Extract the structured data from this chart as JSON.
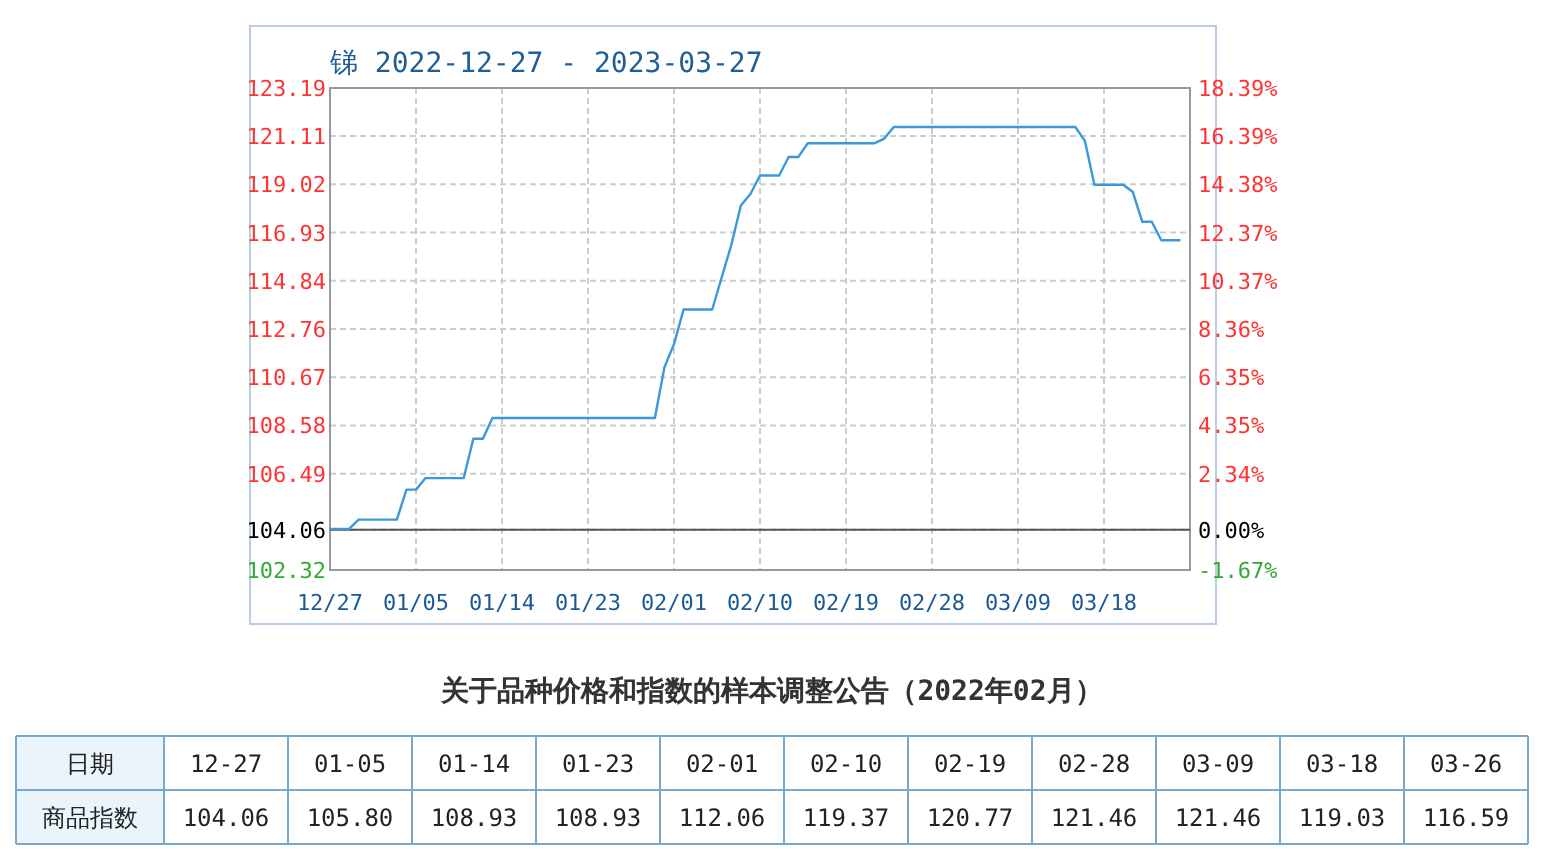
{
  "chart_data": [
    {
      "type": "line",
      "title": "锑 2022-12-27 - 2023-03-27",
      "color": "#3a98db",
      "grid": true,
      "x": [
        "2022-12-27",
        "2022-12-29",
        "2022-12-30",
        "2023-01-03",
        "2023-01-04",
        "2023-01-05",
        "2023-01-06",
        "2023-01-10",
        "2023-01-11",
        "2023-01-12",
        "2023-01-13",
        "2023-01-30",
        "2023-01-31",
        "2023-02-01",
        "2023-02-02",
        "2023-02-05",
        "2023-02-07",
        "2023-02-08",
        "2023-02-09",
        "2023-02-10",
        "2023-02-12",
        "2023-02-13",
        "2023-02-14",
        "2023-02-15",
        "2023-02-22",
        "2023-02-23",
        "2023-02-24",
        "2023-03-15",
        "2023-03-16",
        "2023-03-17",
        "2023-03-20",
        "2023-03-21",
        "2023-03-22",
        "2023-03-23",
        "2023-03-24",
        "2023-03-26"
      ],
      "values": [
        104.1,
        104.1,
        104.5,
        104.5,
        105.8,
        105.8,
        106.3,
        106.3,
        108.0,
        108.0,
        108.9,
        108.9,
        111.1,
        112.1,
        113.6,
        113.6,
        116.4,
        118.1,
        118.6,
        119.4,
        119.4,
        120.2,
        120.2,
        120.8,
        120.8,
        121.0,
        121.5,
        121.5,
        120.9,
        119.0,
        119.0,
        118.7,
        117.4,
        117.4,
        116.6,
        116.6
      ],
      "xlim": [
        "2022-12-27",
        "2023-03-27"
      ],
      "xticks": [
        {
          "value": "2022-12-27",
          "label": "12/27"
        },
        {
          "value": "2023-01-05",
          "label": "01/05"
        },
        {
          "value": "2023-01-14",
          "label": "01/14"
        },
        {
          "value": "2023-01-23",
          "label": "01/23"
        },
        {
          "value": "2023-02-01",
          "label": "02/01"
        },
        {
          "value": "2023-02-10",
          "label": "02/10"
        },
        {
          "value": "2023-02-19",
          "label": "02/19"
        },
        {
          "value": "2023-02-28",
          "label": "02/28"
        },
        {
          "value": "2023-03-09",
          "label": "03/09"
        },
        {
          "value": "2023-03-18",
          "label": "03/18"
        }
      ],
      "ylim": [
        102.32,
        123.19
      ],
      "yticks": [
        102.32,
        104.06,
        106.49,
        108.58,
        110.67,
        112.76,
        114.84,
        116.93,
        119.02,
        121.11,
        123.19
      ],
      "y2lim": [
        -1.67,
        18.39
      ],
      "y2ticks": [
        {
          "value": -1.67,
          "label": "-1.67%"
        },
        {
          "value": 0,
          "label": "0.00%"
        },
        {
          "value": 2.34,
          "label": "2.34%"
        },
        {
          "value": 4.35,
          "label": "4.35%"
        },
        {
          "value": 6.35,
          "label": "6.35%"
        },
        {
          "value": 8.36,
          "label": "8.36%"
        },
        {
          "value": 10.37,
          "label": "10.37%"
        },
        {
          "value": 12.37,
          "label": "12.37%"
        },
        {
          "value": 14.38,
          "label": "14.38%"
        },
        {
          "value": 16.39,
          "label": "16.39%"
        },
        {
          "value": 18.39,
          "label": "18.39%"
        }
      ],
      "ref_lines": [
        {
          "axis": "y",
          "value": 104.06,
          "color": "#555555"
        }
      ]
    },
    {
      "type": "other",
      "title": "关于品种价格和指数的样本调整公告（2022年02月）",
      "xlabel": "日期",
      "ylabel": "商品指数",
      "value_labels": [
        "104.06",
        "105.80",
        "108.93",
        "108.93",
        "112.06",
        "119.37",
        "120.77",
        "121.46",
        "121.46",
        "119.03",
        "116.59"
      ],
      "categories": [
        "12-27",
        "01-05",
        "01-14",
        "01-23",
        "02-01",
        "02-10",
        "02-19",
        "02-28",
        "03-09",
        "03-18",
        "03-26"
      ],
      "values": [
        104.06,
        105.8,
        108.93,
        108.93,
        112.06,
        119.37,
        120.77,
        121.46,
        121.46,
        119.03,
        116.59
      ]
    }
  ]
}
